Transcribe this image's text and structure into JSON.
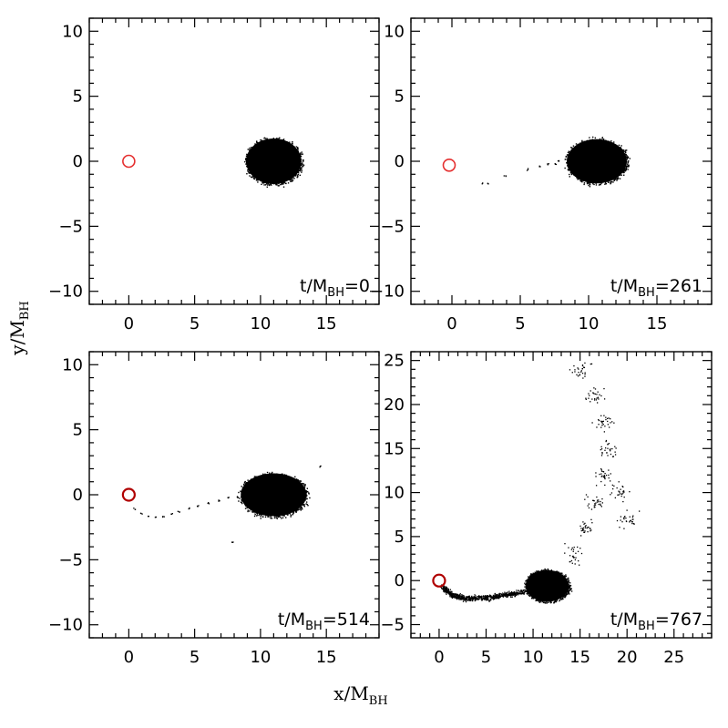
{
  "figure": {
    "xlabel": "x/M",
    "xlabel_sub": "BH",
    "ylabel": "y/M",
    "ylabel_sub": "BH"
  },
  "colors": {
    "blackhole": "#e53030",
    "blackhole_late": "#b00000",
    "particles": "#000000"
  },
  "chart_data": [
    {
      "type": "scatter",
      "panel": "top-left",
      "annotation": {
        "main": "t/M",
        "sub": "BH",
        "value": "=0"
      },
      "xlim": [
        -3,
        19
      ],
      "ylim": [
        -11,
        11
      ],
      "xticks": [
        0,
        5,
        10,
        15
      ],
      "yticks": [
        -10,
        -5,
        0,
        5,
        10
      ],
      "show_xticklabels": true,
      "show_yticklabels": true,
      "blackhole": {
        "x": 0,
        "y": 0
      },
      "star": {
        "cx": 11,
        "cy": 0,
        "rx": 2.1,
        "ry": 1.75
      },
      "stream": []
    },
    {
      "type": "scatter",
      "panel": "top-right",
      "annotation": {
        "main": "t/M",
        "sub": "BH",
        "value": "=261"
      },
      "xlim": [
        -3,
        19
      ],
      "ylim": [
        -11,
        11
      ],
      "xticks": [
        0,
        5,
        10,
        15
      ],
      "yticks": [
        -10,
        -5,
        0,
        5,
        10
      ],
      "show_xticklabels": true,
      "show_yticklabels": true,
      "blackhole": {
        "x": -0.2,
        "y": -0.3
      },
      "star": {
        "cx": 10.6,
        "cy": 0,
        "rx": 2.2,
        "ry": 1.7
      },
      "stream": [
        [
          2.2,
          -1.6
        ],
        [
          2.6,
          -1.7
        ],
        [
          3.9,
          -1.1
        ],
        [
          5.5,
          -0.6
        ],
        [
          6.4,
          -0.4
        ],
        [
          7.0,
          -0.2
        ],
        [
          7.5,
          -0.15
        ],
        [
          7.8,
          0.05
        ]
      ]
    },
    {
      "type": "scatter",
      "panel": "bottom-left",
      "annotation": {
        "main": "t/M",
        "sub": "BH",
        "value": "=514"
      },
      "xlim": [
        -3,
        19
      ],
      "ylim": [
        -11,
        11
      ],
      "xticks": [
        0,
        5,
        10,
        15
      ],
      "yticks": [
        -10,
        -5,
        0,
        5,
        10
      ],
      "show_xticklabels": true,
      "show_yticklabels": true,
      "blackhole": {
        "x": 0,
        "y": 0
      },
      "star": {
        "cx": 11,
        "cy": 0,
        "rx": 2.5,
        "ry": 1.65
      },
      "stream": [
        [
          0.4,
          -1.0
        ],
        [
          0.9,
          -1.4
        ],
        [
          1.4,
          -1.6
        ],
        [
          2.0,
          -1.7
        ],
        [
          2.6,
          -1.6
        ],
        [
          3.2,
          -1.5
        ],
        [
          3.8,
          -1.3
        ],
        [
          4.5,
          -1.0
        ],
        [
          5.2,
          -0.8
        ],
        [
          6.0,
          -0.6
        ],
        [
          6.8,
          -0.4
        ],
        [
          7.5,
          -0.2
        ],
        [
          8.2,
          -0.1
        ],
        [
          7.8,
          -3.6
        ],
        [
          14.5,
          2.2
        ]
      ]
    },
    {
      "type": "scatter",
      "panel": "bottom-right",
      "annotation": {
        "main": "t/M",
        "sub": "BH",
        "value": "=767"
      },
      "xlim": [
        -3,
        29
      ],
      "ylim": [
        -6.5,
        26
      ],
      "xticks": [
        0,
        5,
        10,
        15,
        20,
        25
      ],
      "yticks": [
        -5,
        0,
        5,
        10,
        15,
        20,
        25
      ],
      "show_xticklabels": true,
      "show_yticklabels": true,
      "blackhole": {
        "x": 0,
        "y": 0
      },
      "star": {
        "cx": 11.5,
        "cy": -0.6,
        "rx": 2.3,
        "ry": 1.8
      },
      "tail": [
        [
          0.2,
          -0.6
        ],
        [
          1.5,
          -1.7
        ],
        [
          3.0,
          -2.0
        ],
        [
          5.0,
          -1.9
        ],
        [
          7.0,
          -1.6
        ],
        [
          9.0,
          -1.2
        ]
      ],
      "stream": [
        [
          14,
          3
        ],
        [
          15.5,
          6
        ],
        [
          16.5,
          9
        ],
        [
          17.5,
          12
        ],
        [
          18,
          15
        ],
        [
          17.5,
          18
        ],
        [
          16.5,
          21
        ],
        [
          15,
          24
        ],
        [
          19,
          10
        ],
        [
          20,
          7
        ]
      ]
    }
  ]
}
